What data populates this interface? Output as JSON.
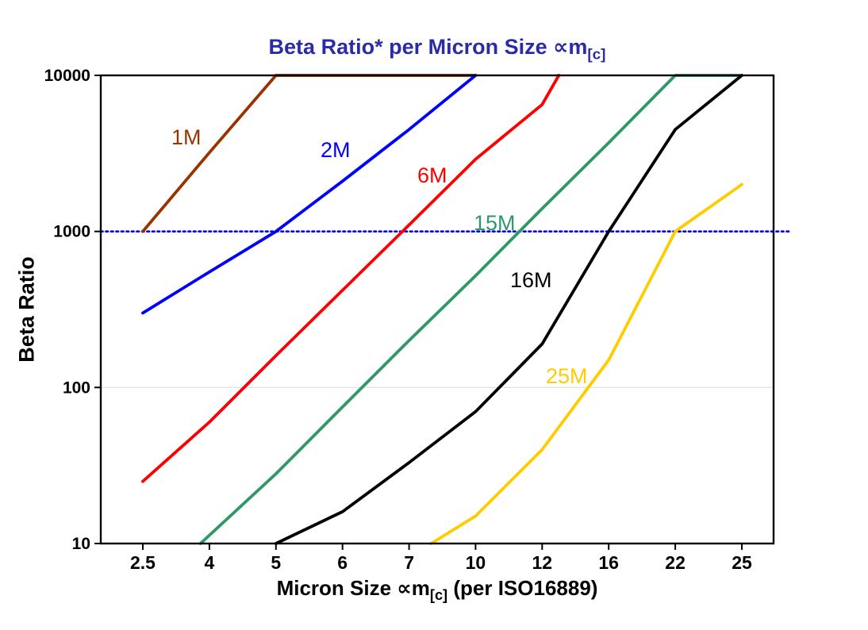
{
  "background": "#FFFFFF",
  "title": {
    "prefix": "Beta Ratio* per Micron Size ∝m",
    "sub": "[c]",
    "color": "#2B2BA6"
  },
  "x_axis": {
    "prefix": "Micron Size ∝m",
    "sub": "[c]",
    "suffix": " (per ISO16889)"
  },
  "y_axis": {
    "label": "Beta Ratio"
  },
  "chart_data": {
    "type": "line",
    "title": "Beta Ratio* per Micron Size ∝m[c]",
    "xlabel": "Micron Size ∝m[c] (per ISO16889)",
    "ylabel": "Beta Ratio",
    "x_scale": "categorical-equal-spacing",
    "y_scale": "log",
    "ylim": [
      10,
      10000
    ],
    "x_categories": [
      2.5,
      4,
      5,
      6,
      7,
      10,
      12,
      16,
      22,
      25
    ],
    "x_tick_labels": [
      "2.5",
      "4",
      "5",
      "6",
      "7",
      "10",
      "12",
      "16",
      "22",
      "25"
    ],
    "y_ticks": [
      10,
      100,
      1000,
      10000
    ],
    "y_tick_labels": [
      "10",
      "100",
      "1000",
      "10000"
    ],
    "grid": "horizontal-light",
    "legend": "inline-labels",
    "reference_line": {
      "y": 1000,
      "style": "dotted",
      "color": "#0000EE"
    },
    "series": [
      {
        "name": "1M",
        "color": "#993300",
        "points": [
          [
            2.5,
            1000
          ],
          [
            4,
            3200
          ],
          [
            5,
            10000
          ],
          [
            10,
            10000
          ]
        ],
        "label_pos": [
          216,
          182
        ]
      },
      {
        "name": "2M",
        "color": "#0000FF",
        "points": [
          [
            2.5,
            300
          ],
          [
            4,
            550
          ],
          [
            5,
            1000
          ],
          [
            6,
            2100
          ],
          [
            7,
            4500
          ],
          [
            10,
            10000
          ]
        ],
        "label_pos": [
          404,
          198
        ]
      },
      {
        "name": "6M",
        "color": "#FF0000",
        "points": [
          [
            2.5,
            25
          ],
          [
            4,
            60
          ],
          [
            5,
            160
          ],
          [
            6,
            420
          ],
          [
            7,
            1100
          ],
          [
            10,
            2900
          ],
          [
            12,
            6500
          ],
          [
            13,
            10000
          ]
        ],
        "label_pos": [
          526,
          230
        ]
      },
      {
        "name": "15M",
        "color": "#2E9966",
        "points": [
          [
            3.8,
            10
          ],
          [
            5,
            28
          ],
          [
            6,
            75
          ],
          [
            7,
            200
          ],
          [
            10,
            520
          ],
          [
            12,
            1400
          ],
          [
            16,
            3700
          ],
          [
            22,
            10000
          ],
          [
            25,
            10000
          ]
        ],
        "label_pos": [
          597,
          290
        ]
      },
      {
        "name": "16M",
        "color": "#000000",
        "points": [
          [
            5,
            10
          ],
          [
            6,
            16
          ],
          [
            7,
            33
          ],
          [
            10,
            70
          ],
          [
            12,
            190
          ],
          [
            16,
            1000
          ],
          [
            22,
            4500
          ],
          [
            25,
            10000
          ]
        ],
        "label_pos": [
          643,
          362
        ]
      },
      {
        "name": "25M",
        "color": "#FFCC00",
        "points": [
          [
            8,
            10
          ],
          [
            10,
            15
          ],
          [
            12,
            40
          ],
          [
            16,
            150
          ],
          [
            22,
            1000
          ],
          [
            25,
            2000
          ]
        ],
        "label_pos": [
          688,
          483
        ]
      }
    ]
  }
}
